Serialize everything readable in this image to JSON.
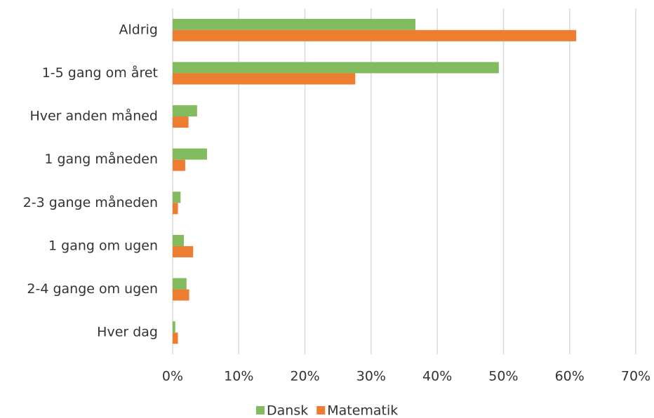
{
  "chart_data": {
    "type": "bar",
    "orientation": "horizontal",
    "categories": [
      "Aldrig",
      "1-5 gang om året",
      "Hver anden måned",
      "1 gang måneden",
      "2-3 gange måneden",
      "1 gang om ugen",
      "2-4 gange om ugen",
      "Hver dag"
    ],
    "series": [
      {
        "name": "Dansk",
        "color": "#82bc5f",
        "values": [
          36.7,
          49.3,
          3.7,
          5.2,
          1.2,
          1.7,
          2.1,
          0.4
        ]
      },
      {
        "name": "Matematik",
        "color": "#ed7d31",
        "values": [
          61.0,
          27.6,
          2.4,
          1.9,
          0.8,
          3.1,
          2.5,
          0.8
        ]
      }
    ],
    "xlim": [
      0,
      70
    ],
    "xticks": [
      {
        "value": 0,
        "label": "0%"
      },
      {
        "value": 10,
        "label": "10%"
      },
      {
        "value": 20,
        "label": "20%"
      },
      {
        "value": 30,
        "label": "30%"
      },
      {
        "value": 40,
        "label": "40%"
      },
      {
        "value": 50,
        "label": "50%"
      },
      {
        "value": 60,
        "label": "60%"
      },
      {
        "value": 70,
        "label": "70%"
      }
    ],
    "grid": true,
    "legend": "bottom"
  }
}
